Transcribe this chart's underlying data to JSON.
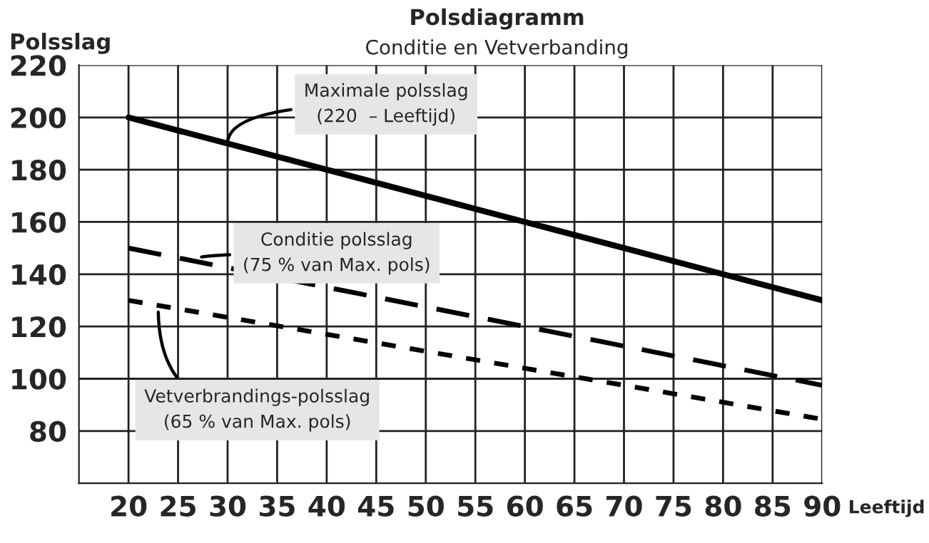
{
  "chart_data": {
    "type": "line",
    "title": "Polsdiagramm",
    "subtitle": "Conditie en Vetverbanding",
    "xlabel": "Leeftijd",
    "ylabel": "Polsslag",
    "x": [
      20,
      90
    ],
    "series": [
      {
        "color": "#000000",
        "line_style": "solid",
        "values": [
          200,
          130
        ]
      },
      {
        "color": "#000000",
        "line_style": "dashed",
        "values": [
          150,
          97.5
        ]
      },
      {
        "color": "#000000",
        "line_style": "dotted",
        "values": [
          130,
          84.5
        ]
      }
    ],
    "xlim": [
      15,
      90
    ],
    "xticks": [
      20,
      25,
      30,
      35,
      40,
      45,
      50,
      55,
      60,
      65,
      70,
      75,
      80,
      85,
      90
    ],
    "ylim": [
      60,
      220
    ],
    "yticks": [
      80,
      100,
      120,
      140,
      160,
      180,
      200,
      220
    ],
    "grid": true,
    "marker": "none",
    "annotations": [
      {
        "text": "Maximale polsslag\n(220  – Leeftijd)",
        "x": 30,
        "y": 190
      },
      {
        "text": "Conditie polsslag\n(75 % van Max. pols)",
        "x": 27,
        "y": 146
      },
      {
        "text": "Vetverbrandings-polsslag\n(65 % van Max. pols)",
        "x": 23,
        "y": 127
      }
    ]
  }
}
